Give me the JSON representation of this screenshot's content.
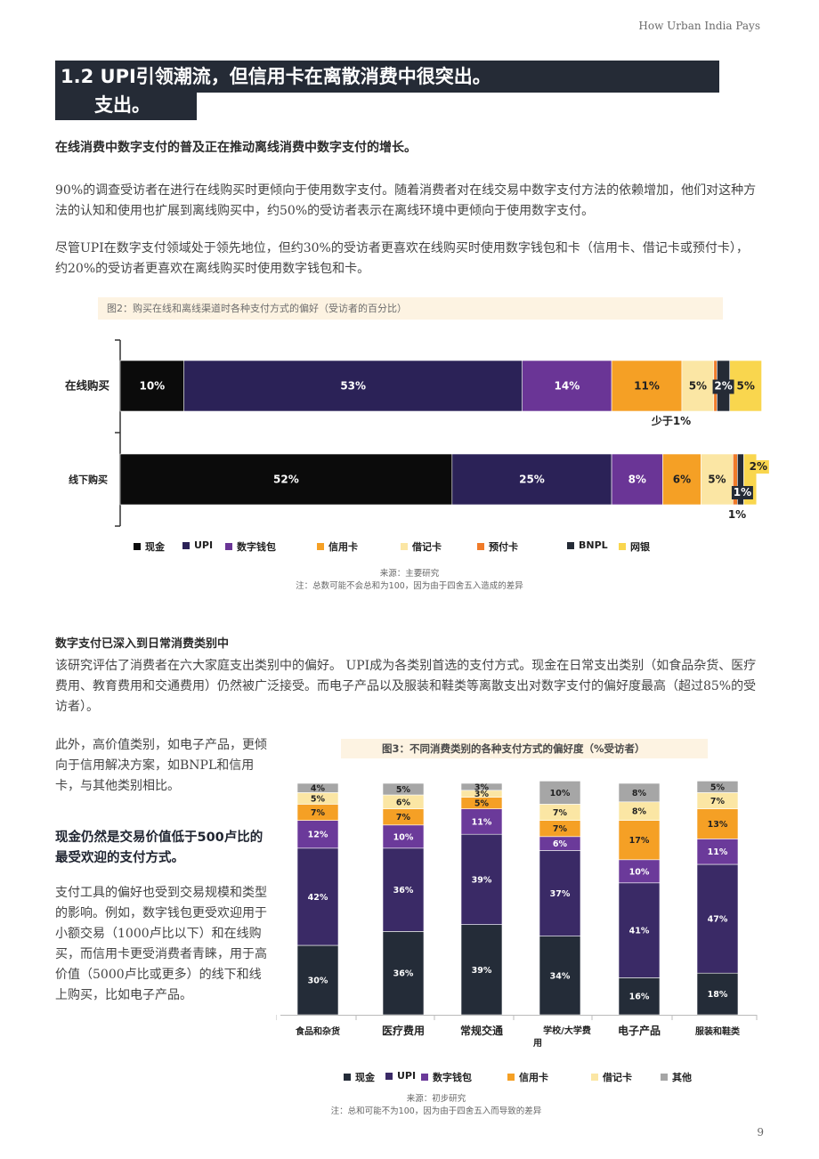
{
  "header": {
    "running_title": "How Urban India Pays",
    "section_title_line1": "1.2 UPI引领潮流，但信用卡在离散消费中很突出。",
    "section_title_line2": "支出。"
  },
  "intro": {
    "subheading": "在线消费中数字支付的普及正在推动离线消费中数字支付的增长。",
    "paragraph1": "90%的调查受访者在进行在线购买时更倾向于使用数字支付。随着消费者对在线交易中数字支付方法的依赖增加，他们对这种方法的认知和使用也扩展到离线购买中，约50%的受访者表示在离线环境中更倾向于使用数字支付。",
    "paragraph2": "尽管UPI在数字支付领域处于领先地位，但约30%的受访者更喜欢在线购买时使用数字钱包和卡（信用卡、借记卡或预付卡），约20%的受访者更喜欢在离线购买时使用数字钱包和卡。"
  },
  "figure2": {
    "title": "图2：购买在线和离线渠道时各种支付方式的偏好（受访者的百分比）",
    "source": "来源：主要研究",
    "note": "注：总数可能不会总和为100，因为由于四舍五入造成的差异",
    "annotation_online": "少于1%",
    "annotation_offline": "1%"
  },
  "section2": {
    "subheading": "数字支付已深入到日常消费类别中",
    "paragraph": "该研究评估了消费者在六大家庭支出类别中的偏好。 UPI成为各类别首选的支付方式。现金在日常支出类别（如食品杂货、医疗费用、教育费用和交通费用）仍然被广泛接受。而电子产品以及服装和鞋类等离散支出对数字支付的偏好度最高（超过85%的受访者）。",
    "side_paragraph1": "此外，高价值类别，如电子产品，更倾向于信用解决方案，如BNPL和信用卡，与其他类别相比。",
    "side_bold": "现金仍然是交易价值低于500卢比的最受欢迎的支付方式。",
    "side_paragraph2": "支付工具的偏好也受到交易规模和类型的影响。例如，数字钱包更受欢迎用于小额交易（1000卢比以下）和在线购买，而信用卡更受消费者青睐，用于高价值（5000卢比或更多）的线下和线上购买，比如电子产品。"
  },
  "figure3": {
    "title": "图3：不同消费类别的各种支付方式的偏好度（%受访者）",
    "source": "来源：初步研究",
    "note": "注：总和可能不为100，因为由于四舍五入而导致的差异"
  },
  "page_number": "9",
  "chart_data": [
    {
      "type": "bar",
      "orientation": "horizontal",
      "stacked": true,
      "title": "图2：购买在线和离线渠道时各种支付方式的偏好（受访者的百分比）",
      "categories": [
        "在线购买",
        "线下购买"
      ],
      "xlim": [
        0,
        100
      ],
      "legend_position": "bottom",
      "series": [
        {
          "name": "现金",
          "color": "#0b0b0b",
          "values": [
            10,
            52
          ],
          "labels": [
            "10%",
            "52%"
          ]
        },
        {
          "name": "UPI",
          "color": "#2b2257",
          "values": [
            53,
            25
          ],
          "labels": [
            "53%",
            "25%"
          ]
        },
        {
          "name": "数字钱包",
          "color": "#6a3596",
          "values": [
            14,
            8
          ],
          "labels": [
            "14%",
            "8%"
          ]
        },
        {
          "name": "信用卡",
          "color": "#f5a025",
          "values": [
            11,
            6
          ],
          "labels": [
            "11%",
            "6%"
          ]
        },
        {
          "name": "借记卡",
          "color": "#fbe6a4",
          "values": [
            5,
            5
          ],
          "labels": [
            "5%",
            "5%"
          ]
        },
        {
          "name": "预付卡",
          "color": "#f07b29",
          "values": [
            0.5,
            0.7
          ],
          "labels": [
            "",
            ""
          ]
        },
        {
          "name": "BNPL",
          "color": "#252b36",
          "values": [
            2,
            1
          ],
          "labels": [
            "2%",
            "1%"
          ]
        },
        {
          "name": "网银",
          "color": "#f9d64e",
          "values": [
            5,
            2
          ],
          "labels": [
            "5%",
            "2%"
          ]
        }
      ]
    },
    {
      "type": "bar",
      "orientation": "vertical",
      "stacked": true,
      "title": "图3：不同消费类别的各种支付方式的偏好度（%受访者）",
      "categories": [
        "食品和杂货",
        "医疗费用",
        "常规交通",
        "学校/大学费用",
        "电子产品",
        "服装和鞋类"
      ],
      "ylim": [
        0,
        100
      ],
      "legend_position": "bottom",
      "series": [
        {
          "name": "现金",
          "color": "#242c38",
          "values": [
            30,
            36,
            39,
            34,
            16,
            18
          ]
        },
        {
          "name": "UPI",
          "color": "#3a2a66",
          "values": [
            42,
            36,
            39,
            37,
            41,
            47
          ]
        },
        {
          "name": "数字钱包",
          "color": "#6b3a9a",
          "values": [
            12,
            10,
            11,
            6,
            10,
            11
          ]
        },
        {
          "name": "信用卡",
          "color": "#f5a025",
          "values": [
            7,
            7,
            5,
            7,
            17,
            13
          ]
        },
        {
          "name": "借记卡",
          "color": "#fbe6a4",
          "values": [
            5,
            6,
            3,
            7,
            8,
            7
          ]
        },
        {
          "name": "其他",
          "color": "#a6a6a6",
          "values": [
            4,
            5,
            3,
            10,
            8,
            5
          ]
        }
      ]
    }
  ]
}
